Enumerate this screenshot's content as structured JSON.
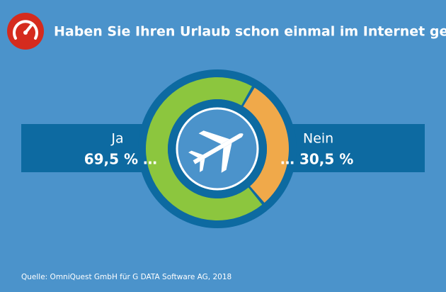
{
  "chart_data": {
    "type": "donut",
    "title": "Haben Sie Ihren Urlaub schon einmal im Internet gebucht?",
    "categories": [
      "Ja",
      "Nein"
    ],
    "values": [
      69.5,
      30.5
    ],
    "value_labels": [
      "69,5 % …",
      "… 30,5 %"
    ],
    "colors": [
      "#8cc63e",
      "#f0a94a"
    ],
    "source": "Quelle: OmniQuest GmbH für G DATA Software AG, 2018"
  }
}
